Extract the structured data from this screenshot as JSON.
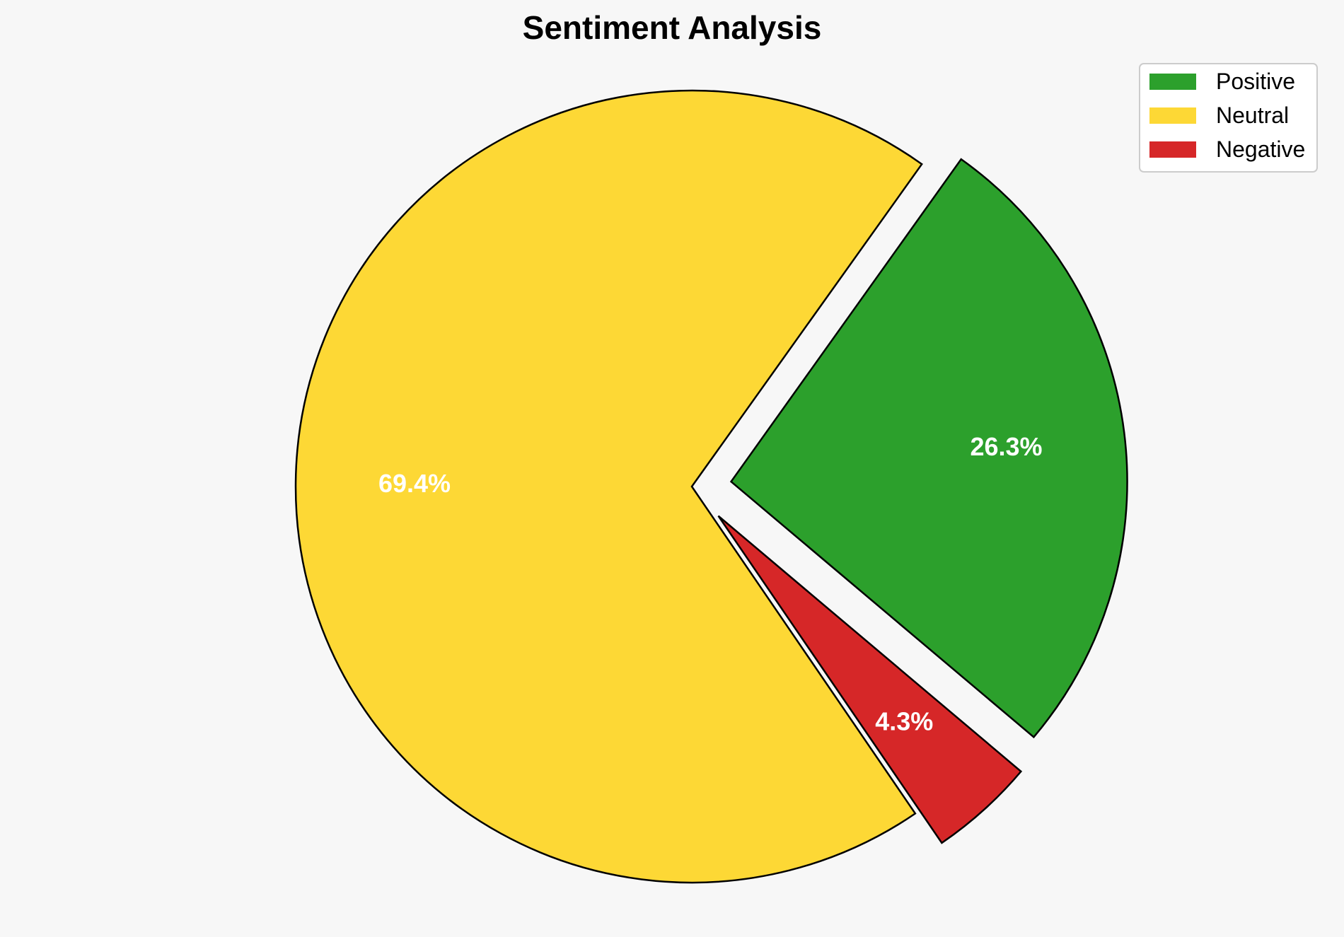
{
  "chart_data": {
    "type": "pie",
    "title": "Sentiment Analysis",
    "categories": [
      "Positive",
      "Neutral",
      "Negative"
    ],
    "values": [
      26.3,
      69.4,
      4.3
    ],
    "labels": [
      "26.3%",
      "69.4%",
      "4.3%"
    ],
    "colors": [
      "#2ca02c",
      "#fdd835",
      "#d62728"
    ],
    "exploded": [
      true,
      false,
      true
    ],
    "slice_order": "counterclockwise starting from the Neutral slice at the upper right",
    "legend": {
      "placement": "top-right",
      "entries": [
        "Positive",
        "Neutral",
        "Negative"
      ]
    },
    "edge_color": "#000000",
    "background": "#f7f7f7"
  }
}
